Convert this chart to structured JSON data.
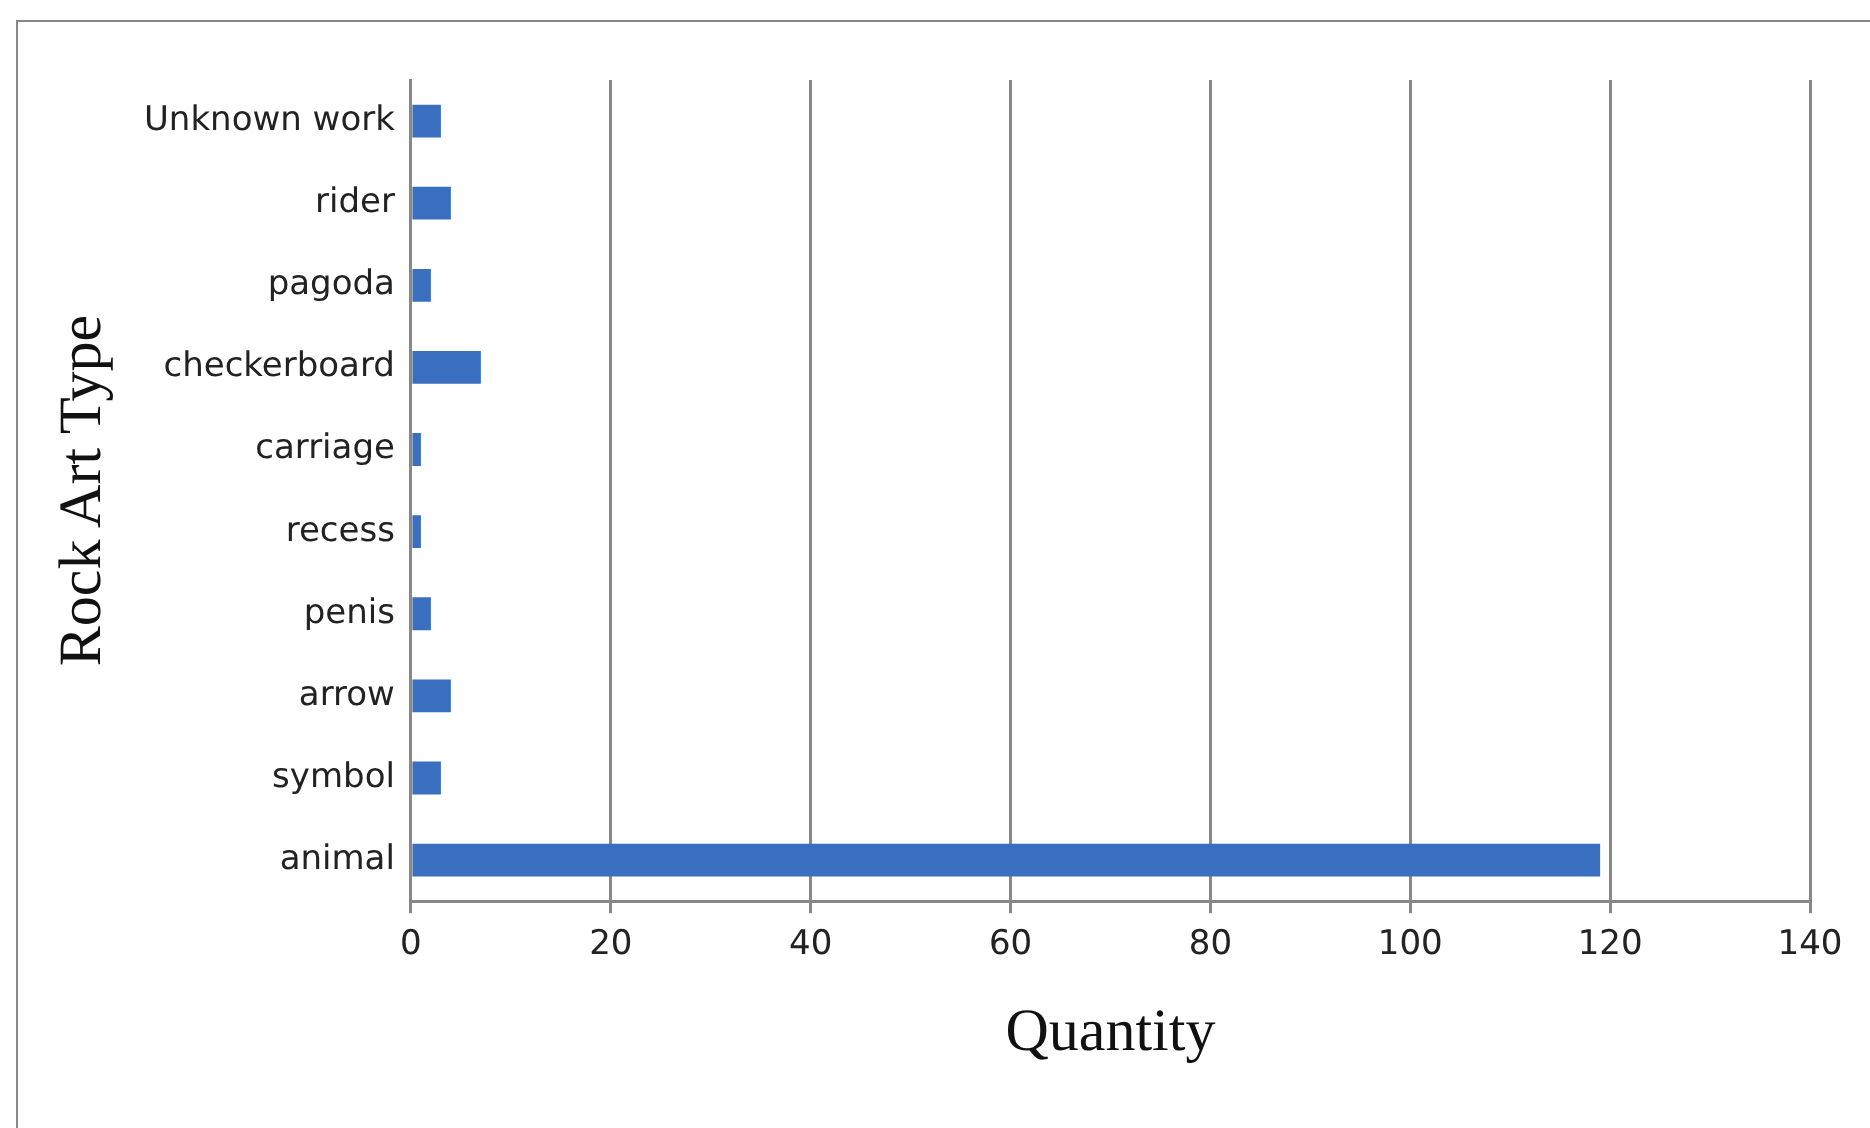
{
  "chart_data": {
    "type": "bar",
    "orientation": "horizontal",
    "xlabel": "Quantity",
    "ylabel": "Rock Art Type",
    "categories": [
      "Unknown work",
      "rider",
      "pagoda",
      "checkerboard",
      "carriage",
      "recess",
      "penis",
      "arrow",
      "symbol",
      "animal"
    ],
    "values": [
      3,
      4,
      2,
      7,
      1,
      1,
      2,
      4,
      3,
      119
    ],
    "color": "#3a6fbf",
    "xlim": [
      0,
      140
    ],
    "xticks": [
      0,
      20,
      40,
      60,
      80,
      100,
      120,
      140
    ],
    "grid": "x"
  }
}
